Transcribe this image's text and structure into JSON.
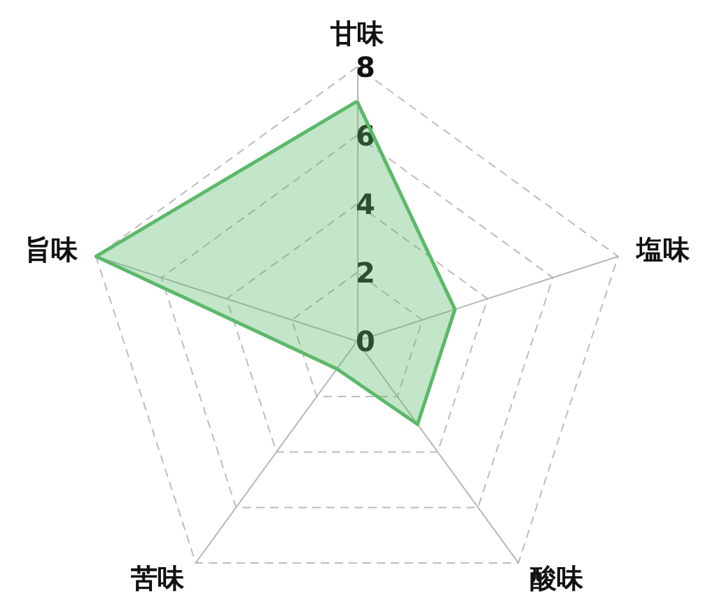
{
  "chart_data": {
    "type": "radar",
    "categories": [
      "甘味",
      "塩味",
      "酸味",
      "苦味",
      "旨味"
    ],
    "series": [
      {
        "color": "#5cb96b",
        "values": [
          7,
          3,
          3,
          1,
          8
        ]
      }
    ],
    "ylim": [
      0,
      8
    ],
    "yticks": [
      0,
      2,
      4,
      6,
      8
    ],
    "grid": true,
    "marker": "none",
    "line_style": "solid"
  }
}
